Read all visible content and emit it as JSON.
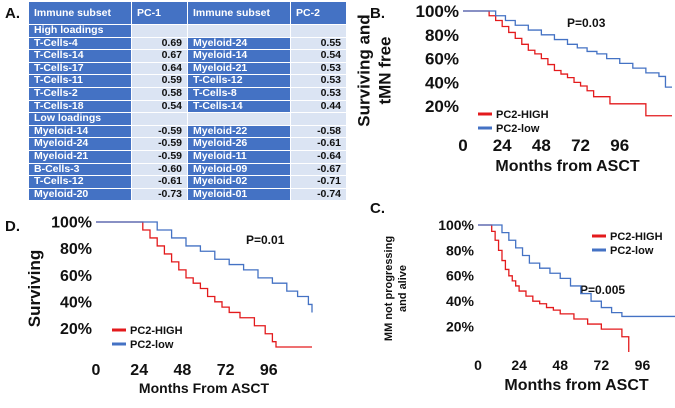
{
  "panel_letters": {
    "a": "A.",
    "b": "B.",
    "c": "C.",
    "d": "D."
  },
  "table": {
    "header": [
      "Immune subset",
      "PC-1",
      "Immune subset",
      "PC-2"
    ],
    "sections": [
      {
        "label": "High loadings",
        "rows": [
          [
            "T-Cells-4",
            "0.69",
            "Myeloid-24",
            "0.55"
          ],
          [
            "T-Cells-14",
            "0.67",
            "Myeloid-14",
            "0.54"
          ],
          [
            "T-Cells-17",
            "0.64",
            "Myeloid-21",
            "0.53"
          ],
          [
            "T-Cells-11",
            "0.59",
            "T-Cells-12",
            "0.53"
          ],
          [
            "T-Cells-2",
            "0.58",
            "T-Cells-8",
            "0.53"
          ],
          [
            "T-Cells-18",
            "0.54",
            "T-Cells-14",
            "0.44"
          ]
        ]
      },
      {
        "label": "Low loadings",
        "rows": [
          [
            "Myeloid-14",
            "-0.59",
            "Myeloid-22",
            "-0.58"
          ],
          [
            "Myeloid-24",
            "-0.59",
            "Myeloid-26",
            "-0.61"
          ],
          [
            "Myeloid-21",
            "-0.59",
            "Myeloid-11",
            "-0.64"
          ],
          [
            "B-Cells-3",
            "-0.60",
            "Myeloid-09",
            "-0.67"
          ],
          [
            "T-Cells-12",
            "-0.61",
            "Myeloid-02",
            "-0.71"
          ],
          [
            "Myeloid-20",
            "-0.73",
            "Myeloid-01",
            "-0.74"
          ]
        ]
      }
    ]
  },
  "colors": {
    "high": "#e31a1c",
    "low": "#4472c4",
    "table_header": "#4472c4",
    "table_value": "#dbe4f3"
  },
  "chart_data": [
    {
      "id": "B",
      "type": "line",
      "ylabel": [
        "Surviving and",
        "tMN free"
      ],
      "xlabel": "Months from ASCT",
      "xticks": [
        0,
        24,
        48,
        72,
        96
      ],
      "yticks": [
        "20%",
        "40%",
        "60%",
        "80%",
        "100%"
      ],
      "ytick_values": [
        20,
        40,
        60,
        80,
        100
      ],
      "xlim": [
        0,
        128
      ],
      "ylim": [
        0,
        100
      ],
      "pvalue": "P=0.03",
      "series": [
        {
          "name": "PC2-HIGH",
          "color": "#e31a1c",
          "x": [
            0,
            12,
            16,
            20,
            24,
            28,
            32,
            36,
            40,
            44,
            48,
            52,
            56,
            60,
            64,
            68,
            72,
            76,
            80,
            86,
            90,
            100,
            112,
            128
          ],
          "y": [
            100,
            100,
            96,
            92,
            87,
            82,
            77,
            72,
            67,
            64,
            60,
            55,
            50,
            47,
            44,
            40,
            37,
            33,
            28,
            28,
            22,
            22,
            12,
            12
          ]
        },
        {
          "name": "PC2-low",
          "color": "#4472c4",
          "x": [
            0,
            14,
            20,
            26,
            32,
            40,
            48,
            56,
            64,
            70,
            76,
            82,
            88,
            96,
            104,
            112,
            120,
            124,
            128
          ],
          "y": [
            100,
            100,
            96,
            92,
            88,
            84,
            80,
            76,
            72,
            69,
            66,
            64,
            60,
            56,
            52,
            48,
            45,
            36,
            36
          ]
        }
      ]
    },
    {
      "id": "C",
      "type": "line",
      "ylabel": [
        "MM not progressing",
        "and alive"
      ],
      "xlabel": "Months from ASCT",
      "xticks": [
        0,
        24,
        48,
        72,
        96
      ],
      "yticks": [
        "20%",
        "40%",
        "60%",
        "80%",
        "100%"
      ],
      "ytick_values": [
        20,
        40,
        60,
        80,
        100
      ],
      "xlim": [
        0,
        115
      ],
      "ylim": [
        0,
        100
      ],
      "pvalue": "P=0.005",
      "series": [
        {
          "name": "PC2-HIGH",
          "color": "#e31a1c",
          "x": [
            0,
            6,
            8,
            10,
            12,
            14,
            16,
            18,
            20,
            22,
            24,
            28,
            32,
            36,
            40,
            44,
            48,
            56,
            64,
            72,
            84,
            88
          ],
          "y": [
            100,
            100,
            95,
            88,
            80,
            72,
            65,
            60,
            56,
            52,
            48,
            44,
            40,
            38,
            35,
            33,
            30,
            26,
            22,
            18,
            12,
            0
          ]
        },
        {
          "name": "PC2-low",
          "color": "#4472c4",
          "x": [
            0,
            10,
            14,
            18,
            22,
            26,
            30,
            36,
            42,
            48,
            54,
            60,
            66,
            72,
            78,
            84,
            96,
            115
          ],
          "y": [
            100,
            100,
            94,
            88,
            82,
            76,
            70,
            66,
            62,
            58,
            52,
            46,
            40,
            35,
            31,
            28,
            28,
            28
          ]
        }
      ]
    },
    {
      "id": "D",
      "type": "line",
      "ylabel": [
        "Surviving"
      ],
      "xlabel": "Months From ASCT",
      "xticks": [
        0,
        24,
        48,
        72,
        96
      ],
      "yticks": [
        "20%",
        "40%",
        "60%",
        "80%",
        "100%"
      ],
      "ytick_values": [
        20,
        40,
        60,
        80,
        100
      ],
      "xlim": [
        0,
        120
      ],
      "ylim": [
        0,
        100
      ],
      "pvalue": "P=0.01",
      "series": [
        {
          "name": "PC2-HIGH",
          "color": "#e31a1c",
          "x": [
            0,
            20,
            26,
            30,
            34,
            38,
            42,
            46,
            50,
            54,
            58,
            62,
            66,
            70,
            74,
            80,
            88,
            94,
            98,
            100,
            120
          ],
          "y": [
            100,
            100,
            94,
            88,
            82,
            76,
            70,
            64,
            58,
            54,
            50,
            44,
            40,
            36,
            32,
            28,
            22,
            16,
            10,
            6,
            6
          ]
        },
        {
          "name": "PC2-low",
          "color": "#4472c4",
          "x": [
            0,
            28,
            34,
            42,
            50,
            58,
            66,
            74,
            82,
            90,
            98,
            106,
            112,
            118,
            120
          ],
          "y": [
            100,
            100,
            94,
            88,
            82,
            78,
            72,
            68,
            64,
            58,
            54,
            48,
            44,
            38,
            32
          ]
        }
      ]
    }
  ]
}
